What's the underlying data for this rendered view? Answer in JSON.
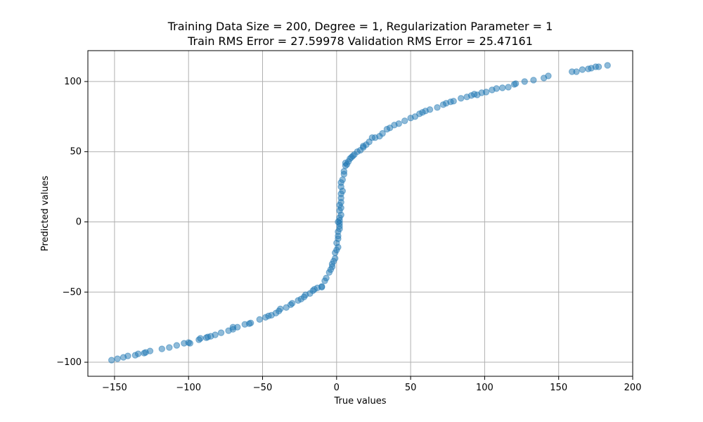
{
  "chart_data": {
    "type": "scatter",
    "title": "Training Data Size = 200, Degree = 1, Regularization Parameter = 1",
    "subtitle": "Train RMS Error = 27.59978 Validation RMS Error = 25.47161",
    "xlabel": "True values",
    "ylabel": "Predicted values",
    "xlim": [
      -168,
      200
    ],
    "ylim": [
      -110,
      122
    ],
    "xticks": [
      -150,
      -100,
      -50,
      0,
      50,
      100,
      150,
      200
    ],
    "yticks": [
      -100,
      -50,
      0,
      50,
      100
    ],
    "grid": true,
    "marker_color": "#1f77b4",
    "marker_alpha": 0.5,
    "points": [
      [
        -152,
        -98.5
      ],
      [
        -148,
        -97.5
      ],
      [
        -144,
        -96.5
      ],
      [
        -141,
        -95.5
      ],
      [
        -136,
        -95
      ],
      [
        -134,
        -94
      ],
      [
        -130,
        -93.5
      ],
      [
        -129,
        -93
      ],
      [
        -126,
        -92
      ],
      [
        -118,
        -90.5
      ],
      [
        -113,
        -89.5
      ],
      [
        -108,
        -88
      ],
      [
        -103,
        -86.5
      ],
      [
        -99,
        -86.5
      ],
      [
        -100,
        -86
      ],
      [
        -93,
        -84
      ],
      [
        -92,
        -83
      ],
      [
        -88,
        -82.5
      ],
      [
        -87,
        -82
      ],
      [
        -85,
        -81.5
      ],
      [
        -82,
        -80.5
      ],
      [
        -78,
        -79
      ],
      [
        -73,
        -77.5
      ],
      [
        -70,
        -76.5
      ],
      [
        -70,
        -75
      ],
      [
        -67,
        -75
      ],
      [
        -62,
        -73
      ],
      [
        -59,
        -72.5
      ],
      [
        -58,
        -72
      ],
      [
        -52,
        -69.5
      ],
      [
        -48,
        -68
      ],
      [
        -46,
        -67
      ],
      [
        -44,
        -66.5
      ],
      [
        -41,
        -65
      ],
      [
        -39,
        -63.5
      ],
      [
        -38,
        -62
      ],
      [
        -34,
        -61
      ],
      [
        -31,
        -59
      ],
      [
        -30,
        -58
      ],
      [
        -26,
        -56
      ],
      [
        -24,
        -55
      ],
      [
        -22,
        -53.5
      ],
      [
        -21,
        -52
      ],
      [
        -18,
        -51
      ],
      [
        -16,
        -49
      ],
      [
        -15,
        -48
      ],
      [
        -13,
        -47
      ],
      [
        -10,
        -46
      ],
      [
        -10,
        -46.5
      ],
      [
        -8,
        -42
      ],
      [
        -7,
        -40
      ],
      [
        -5,
        -36
      ],
      [
        -4,
        -34
      ],
      [
        -3,
        -32
      ],
      [
        -3,
        -30
      ],
      [
        -2,
        -28
      ],
      [
        -1,
        -26
      ],
      [
        -1,
        -22
      ],
      [
        0,
        -20
      ],
      [
        1,
        -18
      ],
      [
        0,
        -15
      ],
      [
        1,
        -12
      ],
      [
        1,
        -10
      ],
      [
        1,
        -7
      ],
      [
        2,
        -5
      ],
      [
        2,
        -3
      ],
      [
        2,
        -1
      ],
      [
        1,
        0
      ],
      [
        2,
        1
      ],
      [
        2,
        3
      ],
      [
        3,
        5
      ],
      [
        2,
        8
      ],
      [
        3,
        10
      ],
      [
        2,
        12
      ],
      [
        3,
        14
      ],
      [
        3,
        17
      ],
      [
        3,
        20
      ],
      [
        4,
        22
      ],
      [
        3,
        25
      ],
      [
        3,
        28
      ],
      [
        4,
        30
      ],
      [
        5,
        34
      ],
      [
        5,
        36
      ],
      [
        6,
        40
      ],
      [
        6,
        42
      ],
      [
        7,
        41
      ],
      [
        8,
        43
      ],
      [
        9,
        45
      ],
      [
        10,
        46
      ],
      [
        11,
        47
      ],
      [
        12,
        48
      ],
      [
        14,
        50
      ],
      [
        16,
        51
      ],
      [
        18,
        53
      ],
      [
        18,
        54
      ],
      [
        20,
        55
      ],
      [
        22,
        57
      ],
      [
        24,
        60
      ],
      [
        26,
        60
      ],
      [
        29,
        61
      ],
      [
        31,
        63
      ],
      [
        34,
        66
      ],
      [
        36,
        67
      ],
      [
        39,
        69
      ],
      [
        42,
        70
      ],
      [
        46,
        72
      ],
      [
        50,
        74
      ],
      [
        53,
        75
      ],
      [
        56,
        77
      ],
      [
        58,
        78
      ],
      [
        60,
        79
      ],
      [
        63,
        80
      ],
      [
        68,
        81.5
      ],
      [
        72,
        83.5
      ],
      [
        74,
        84.5
      ],
      [
        77,
        85.5
      ],
      [
        79,
        86
      ],
      [
        84,
        88
      ],
      [
        88,
        89
      ],
      [
        91,
        90
      ],
      [
        93,
        91
      ],
      [
        95,
        90.5
      ],
      [
        98,
        92
      ],
      [
        101,
        92.5
      ],
      [
        105,
        94
      ],
      [
        108,
        95
      ],
      [
        112,
        95.5
      ],
      [
        116,
        96
      ],
      [
        120,
        98
      ],
      [
        121,
        98.5
      ],
      [
        127,
        100
      ],
      [
        133,
        101
      ],
      [
        140,
        102.5
      ],
      [
        143,
        104
      ],
      [
        159,
        107
      ],
      [
        162,
        107
      ],
      [
        166,
        108.5
      ],
      [
        170,
        109
      ],
      [
        172,
        109.5
      ],
      [
        175,
        110.5
      ],
      [
        177,
        110.5
      ],
      [
        183,
        111.5
      ]
    ]
  }
}
